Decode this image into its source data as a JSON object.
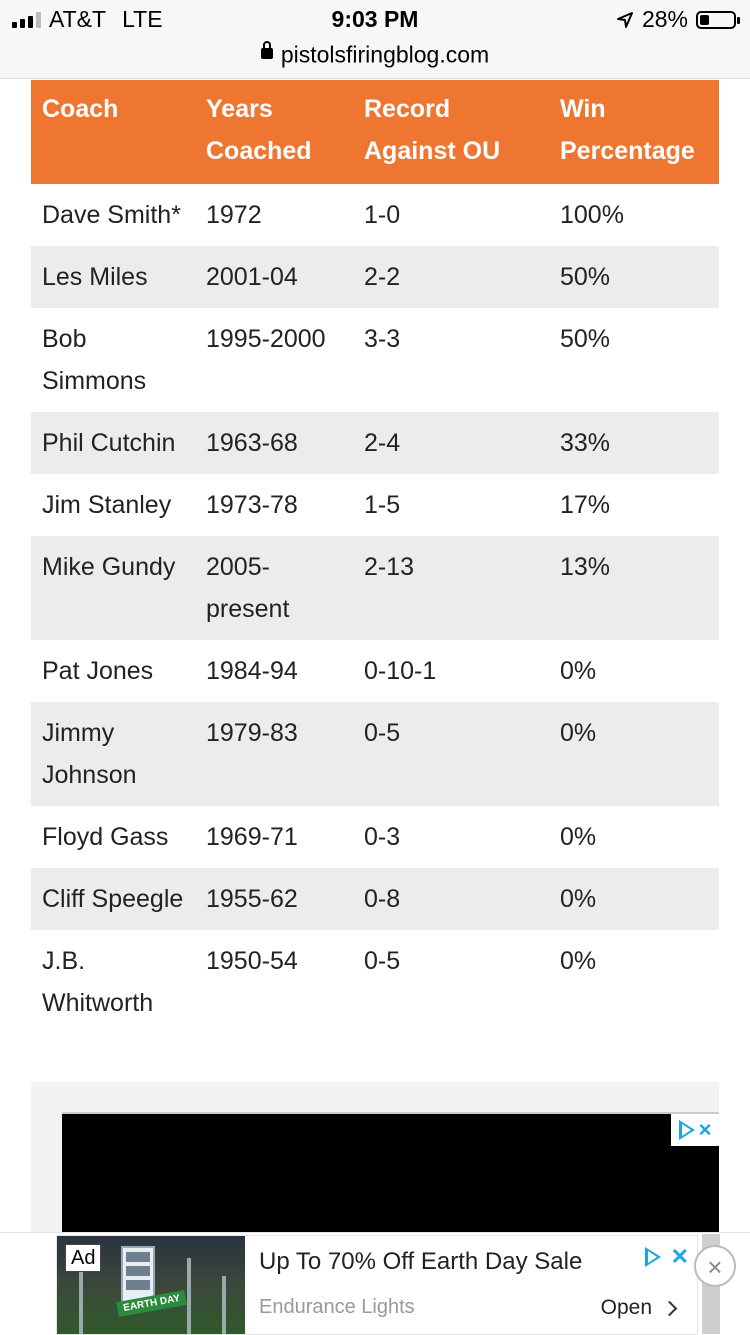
{
  "status_bar": {
    "carrier": "AT&T",
    "network": "LTE",
    "time": "9:03 PM",
    "battery_percent": "28%",
    "battery_level": 0.28,
    "location_icon": "location-arrow-icon"
  },
  "browser": {
    "url": "pistolsfiringblog.com",
    "lock_icon": "lock-icon"
  },
  "table": {
    "headers": [
      "Coach",
      "Years Coached",
      "Record Against OU",
      "Win Percentage"
    ],
    "header_color": "#ef7630",
    "rows": [
      {
        "coach": "Dave Smith*",
        "years": "1972",
        "record": "1-0",
        "pct": "100%"
      },
      {
        "coach": "Les Miles",
        "years": "2001-04",
        "record": "2-2",
        "pct": "50%"
      },
      {
        "coach": "Bob Simmons",
        "years": "1995-2000",
        "record": "3-3",
        "pct": "50%"
      },
      {
        "coach": "Phil Cutchin",
        "years": "1963-68",
        "record": "2-4",
        "pct": "33%"
      },
      {
        "coach": "Jim Stanley",
        "years": "1973-78",
        "record": "1-5",
        "pct": "17%"
      },
      {
        "coach": "Mike Gundy",
        "years": "2005-present",
        "record": "2-13",
        "pct": "13%"
      },
      {
        "coach": "Pat Jones",
        "years": "1984-94",
        "record": "0-10-1",
        "pct": "0%"
      },
      {
        "coach": "Jimmy Johnson",
        "years": "1979-83",
        "record": "0-5",
        "pct": "0%"
      },
      {
        "coach": "Floyd Gass",
        "years": "1969-71",
        "record": "0-3",
        "pct": "0%"
      },
      {
        "coach": "Cliff Speegle",
        "years": "1955-62",
        "record": "0-8",
        "pct": "0%"
      },
      {
        "coach": "J.B. Whitworth",
        "years": "1950-54",
        "record": "0-5",
        "pct": "0%"
      }
    ]
  },
  "banner_ad": {
    "ad_label": "Ad",
    "title": "Up To 70% Off Earth Day Sale",
    "advertiser": "Endurance Lights",
    "cta": "Open",
    "image_text": "EARTH DAY",
    "close_glyph": "×",
    "dismiss_glyph": "✕"
  },
  "video_ad": {
    "close_glyph": "×"
  }
}
